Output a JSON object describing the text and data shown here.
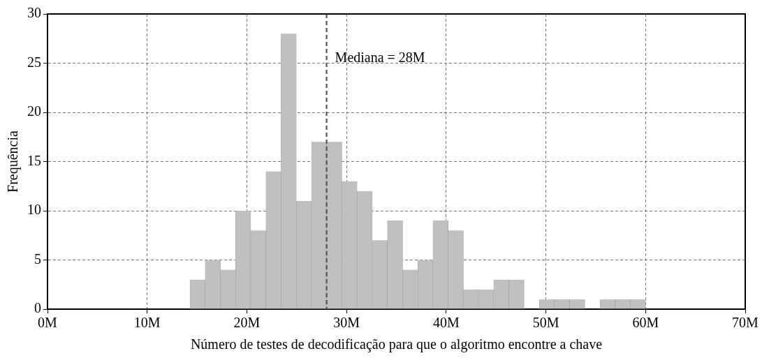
{
  "chart_data": {
    "type": "histogram",
    "xlabel": "Número de testes de decodificação para que o algoritmo encontre a chave",
    "ylabel": "Frequência",
    "bins": [
      14.3,
      15.82,
      17.35,
      18.87,
      20.39,
      21.92,
      23.44,
      24.96,
      26.49,
      28.01,
      29.53,
      31.06,
      32.58,
      34.1,
      35.63,
      37.15,
      38.67,
      40.2,
      41.72,
      43.24,
      44.77,
      46.29,
      47.81,
      49.34,
      50.86,
      52.38,
      53.91,
      55.43,
      56.95,
      58.48,
      60.0
    ],
    "values": [
      3,
      5,
      4,
      10,
      8,
      14,
      28,
      11,
      17,
      17,
      13,
      12,
      7,
      9,
      4,
      5,
      9,
      8,
      2,
      2,
      3,
      3,
      0,
      1,
      1,
      1,
      0,
      1,
      1,
      1
    ],
    "color": "#c0c0c0",
    "xlim": [
      0,
      70
    ],
    "xticks": [
      {
        "value": 0,
        "label": "0M"
      },
      {
        "value": 10,
        "label": "10M"
      },
      {
        "value": 20,
        "label": "20M"
      },
      {
        "value": 30,
        "label": "30M"
      },
      {
        "value": 40,
        "label": "40M"
      },
      {
        "value": 50,
        "label": "50M"
      },
      {
        "value": 60,
        "label": "60M"
      },
      {
        "value": 70,
        "label": "70M"
      }
    ],
    "ylim": [
      0,
      30
    ],
    "yticks": [
      0,
      5,
      10,
      15,
      20,
      25,
      30
    ],
    "grid": true,
    "ref_lines": [
      {
        "axis": "x",
        "value": 28,
        "label": "Mediana = 28M",
        "color": "#555555",
        "line_style": "dashed"
      }
    ]
  }
}
